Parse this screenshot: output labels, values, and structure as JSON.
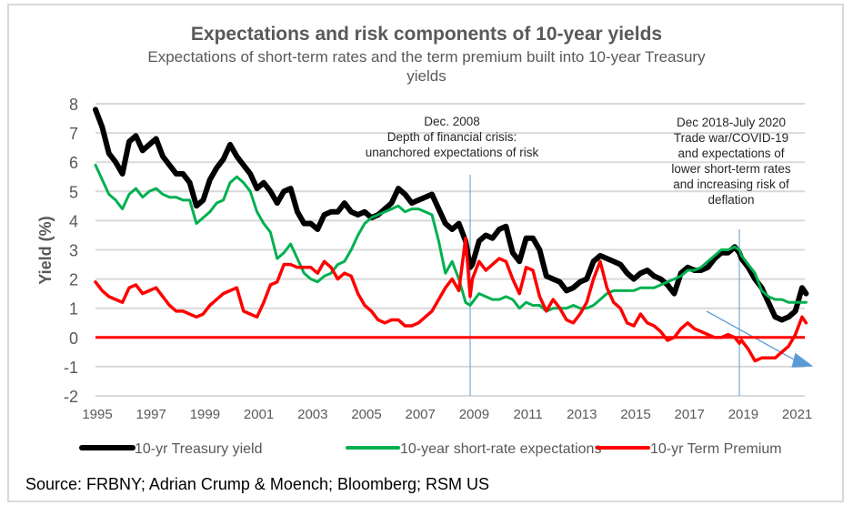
{
  "chart_data": {
    "type": "line",
    "title": "Expectations and risk components of 10-year yields",
    "subtitle": "Expectations of short-term rates and the term premium built into 10-year Treasury yields",
    "xlabel": "",
    "ylabel": "Yield (%)",
    "ylim": [
      -2,
      8
    ],
    "xlim": [
      1995,
      2021.4
    ],
    "y_ticks": [
      "8",
      "7",
      "6",
      "5",
      "4",
      "3",
      "2",
      "1",
      "0",
      "-1",
      "-2"
    ],
    "x_ticks": [
      "1995",
      "1997",
      "1999",
      "2001",
      "2003",
      "2005",
      "2007",
      "2009",
      "2011",
      "2013",
      "2015",
      "2017",
      "2019",
      "2021"
    ],
    "grid": true,
    "legend_position": "bottom",
    "x": [
      1995.0,
      1995.25,
      1995.5,
      1995.75,
      1996.0,
      1996.25,
      1996.5,
      1996.75,
      1997.0,
      1997.25,
      1997.5,
      1997.75,
      1998.0,
      1998.25,
      1998.5,
      1998.75,
      1999.0,
      1999.25,
      1999.5,
      1999.75,
      2000.0,
      2000.25,
      2000.5,
      2000.75,
      2001.0,
      2001.25,
      2001.5,
      2001.75,
      2002.0,
      2002.25,
      2002.5,
      2002.75,
      2003.0,
      2003.25,
      2003.5,
      2003.75,
      2004.0,
      2004.25,
      2004.5,
      2004.75,
      2005.0,
      2005.25,
      2005.5,
      2005.75,
      2006.0,
      2006.25,
      2006.5,
      2006.75,
      2007.0,
      2007.25,
      2007.5,
      2007.75,
      2008.0,
      2008.25,
      2008.5,
      2008.75,
      2008.92,
      2009.0,
      2009.25,
      2009.5,
      2009.75,
      2010.0,
      2010.25,
      2010.5,
      2010.75,
      2011.0,
      2011.25,
      2011.5,
      2011.75,
      2012.0,
      2012.25,
      2012.5,
      2012.75,
      2013.0,
      2013.25,
      2013.5,
      2013.75,
      2014.0,
      2014.25,
      2014.5,
      2014.75,
      2015.0,
      2015.25,
      2015.5,
      2015.75,
      2016.0,
      2016.25,
      2016.5,
      2016.75,
      2017.0,
      2017.25,
      2017.5,
      2017.75,
      2018.0,
      2018.25,
      2018.5,
      2018.75,
      2018.92,
      2019.0,
      2019.25,
      2019.5,
      2019.75,
      2020.0,
      2020.25,
      2020.5,
      2020.75,
      2021.0,
      2021.25,
      2021.4
    ],
    "series": [
      {
        "name": "10-yr Treasury yield",
        "color": "#000000",
        "values": [
          7.8,
          7.2,
          6.3,
          6.0,
          5.6,
          6.7,
          6.9,
          6.4,
          6.6,
          6.8,
          6.2,
          5.9,
          5.6,
          5.6,
          5.3,
          4.5,
          4.7,
          5.4,
          5.8,
          6.1,
          6.6,
          6.2,
          5.9,
          5.6,
          5.1,
          5.3,
          5.0,
          4.6,
          5.0,
          5.1,
          4.3,
          3.9,
          3.9,
          3.7,
          4.2,
          4.3,
          4.3,
          4.6,
          4.3,
          4.2,
          4.3,
          4.1,
          4.2,
          4.4,
          4.6,
          5.1,
          4.9,
          4.6,
          4.7,
          4.8,
          4.9,
          4.4,
          3.9,
          3.7,
          3.9,
          3.3,
          2.4,
          2.5,
          3.3,
          3.5,
          3.4,
          3.7,
          3.8,
          2.9,
          2.6,
          3.4,
          3.4,
          3.0,
          2.1,
          2.0,
          1.9,
          1.6,
          1.7,
          1.9,
          2.0,
          2.6,
          2.8,
          2.7,
          2.6,
          2.5,
          2.2,
          2.0,
          2.2,
          2.3,
          2.1,
          2.0,
          1.8,
          1.5,
          2.2,
          2.4,
          2.3,
          2.3,
          2.4,
          2.7,
          2.9,
          2.9,
          3.1,
          2.9,
          2.7,
          2.4,
          2.0,
          1.7,
          1.2,
          0.7,
          0.6,
          0.7,
          0.9,
          1.7,
          1.5
        ]
      },
      {
        "name": "10-year short-rate expectations",
        "color": "#00b050",
        "values": [
          5.9,
          5.4,
          4.9,
          4.7,
          4.4,
          4.9,
          5.1,
          4.8,
          5.0,
          5.1,
          4.9,
          4.8,
          4.8,
          4.7,
          4.7,
          3.9,
          4.1,
          4.3,
          4.6,
          4.7,
          5.3,
          5.5,
          5.3,
          5.0,
          4.3,
          3.9,
          3.6,
          2.7,
          2.9,
          3.2,
          2.7,
          2.2,
          2.0,
          1.9,
          2.1,
          2.2,
          2.5,
          2.6,
          3.0,
          3.5,
          3.9,
          4.1,
          4.2,
          4.3,
          4.4,
          4.5,
          4.3,
          4.4,
          4.4,
          4.3,
          4.2,
          3.3,
          2.2,
          2.6,
          2.0,
          1.2,
          1.1,
          1.2,
          1.5,
          1.4,
          1.3,
          1.3,
          1.4,
          1.3,
          1.0,
          1.2,
          1.1,
          1.1,
          0.9,
          1.0,
          1.0,
          1.0,
          1.1,
          1.0,
          1.0,
          1.1,
          1.3,
          1.5,
          1.6,
          1.6,
          1.6,
          1.6,
          1.7,
          1.7,
          1.7,
          1.8,
          1.9,
          2.0,
          2.1,
          2.3,
          2.3,
          2.4,
          2.6,
          2.8,
          3.0,
          3.0,
          3.1,
          3.0,
          2.8,
          2.5,
          2.2,
          1.6,
          1.4,
          1.3,
          1.3,
          1.2,
          1.2,
          1.2,
          1.2
        ]
      },
      {
        "name": "10-yr Term Premium",
        "color": "#ff0000",
        "values": [
          1.9,
          1.6,
          1.4,
          1.3,
          1.2,
          1.7,
          1.8,
          1.5,
          1.6,
          1.7,
          1.4,
          1.1,
          0.9,
          0.9,
          0.8,
          0.7,
          0.8,
          1.1,
          1.3,
          1.5,
          1.6,
          1.7,
          0.9,
          0.8,
          0.7,
          1.2,
          1.8,
          1.9,
          2.5,
          2.5,
          2.4,
          2.4,
          2.4,
          2.2,
          2.6,
          2.4,
          2.0,
          2.2,
          2.1,
          1.5,
          1.1,
          0.9,
          0.6,
          0.5,
          0.6,
          0.6,
          0.4,
          0.4,
          0.5,
          0.7,
          0.9,
          1.3,
          1.7,
          2.0,
          1.6,
          3.4,
          1.4,
          2.0,
          2.6,
          2.3,
          2.5,
          2.7,
          2.6,
          2.0,
          1.5,
          2.4,
          2.3,
          1.4,
          0.9,
          1.3,
          1.0,
          0.6,
          0.5,
          0.8,
          1.2,
          2.0,
          2.6,
          1.7,
          1.2,
          1.0,
          0.5,
          0.4,
          0.8,
          0.5,
          0.4,
          0.2,
          -0.1,
          0.0,
          0.3,
          0.5,
          0.3,
          0.2,
          0.1,
          0.0,
          0.0,
          0.1,
          0.0,
          -0.2,
          -0.1,
          -0.4,
          -0.8,
          -0.7,
          -0.7,
          -0.7,
          -0.5,
          -0.3,
          0.1,
          0.7,
          0.5
        ]
      }
    ],
    "zero_line_color": "#ff0000",
    "annotations": [
      {
        "lines": [
          "Dec. 2008",
          "Depth of financial crisis:",
          "unanchored expectations of risk"
        ],
        "x": 2008.92
      },
      {
        "lines": [
          "Dec 2018-July 2020",
          "Trade war/COVID-19",
          "and expectations of",
          "lower short-term rates",
          "and increasing risk of",
          "deflation"
        ],
        "x": 2018.92
      }
    ],
    "trend_arrow": {
      "from": [
        2017.7,
        0.9
      ],
      "to": [
        2021.4,
        -0.9
      ],
      "color": "#5b9bd5"
    }
  },
  "source": "Source: FRBNY; Adrian Crump & Moench; Bloomberg; RSM US"
}
